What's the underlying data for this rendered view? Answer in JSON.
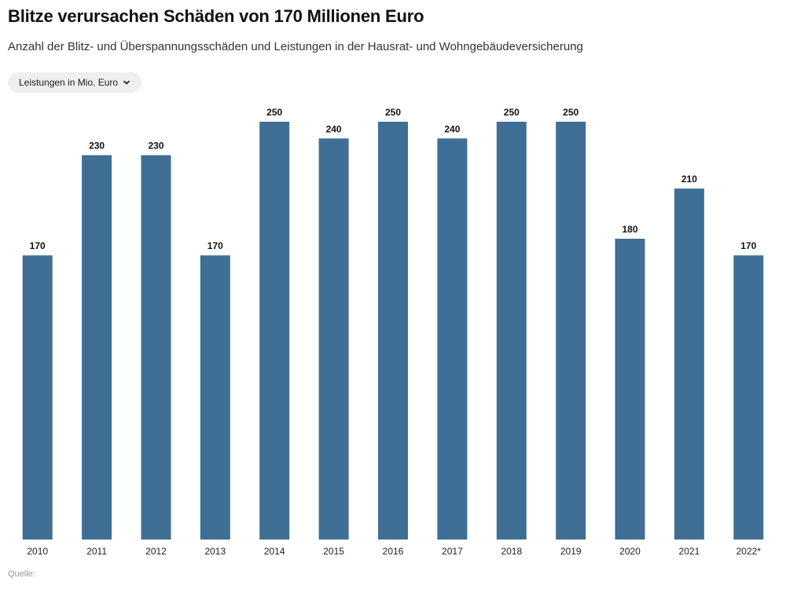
{
  "header": {
    "title": "Blitze verursachen Schäden von 170 Millionen Euro",
    "subtitle": "Anzahl der Blitz- und Überspannungsschäden und Leistungen in der Hausrat- und Wohngebäudeversicherung"
  },
  "controls": {
    "dropdown_label": "Leistungen in Mio. Euro",
    "dropdown_icon": "chevron-down-icon"
  },
  "footer": {
    "source_label": "Quelle:"
  },
  "chart_data": {
    "type": "bar",
    "title": "Blitze verursachen Schäden von 170 Millionen Euro",
    "subtitle": "Anzahl der Blitz- und Überspannungsschäden und Leistungen in der Hausrat- und Wohngebäudeversicherung",
    "categories": [
      "2010",
      "2011",
      "2012",
      "2013",
      "2014",
      "2015",
      "2016",
      "2017",
      "2018",
      "2019",
      "2020",
      "2021",
      "2022*"
    ],
    "values": [
      170,
      230,
      230,
      170,
      250,
      240,
      250,
      240,
      250,
      250,
      180,
      210,
      170
    ],
    "data_labels": [
      "170",
      "230",
      "230",
      "170",
      "250",
      "240",
      "250",
      "240",
      "250",
      "250",
      "180",
      "210",
      "170"
    ],
    "xlabel": "",
    "ylabel": "",
    "ylim": [
      0,
      250
    ],
    "grid": false,
    "legend": "none",
    "bar_color": "#3f6f94"
  }
}
